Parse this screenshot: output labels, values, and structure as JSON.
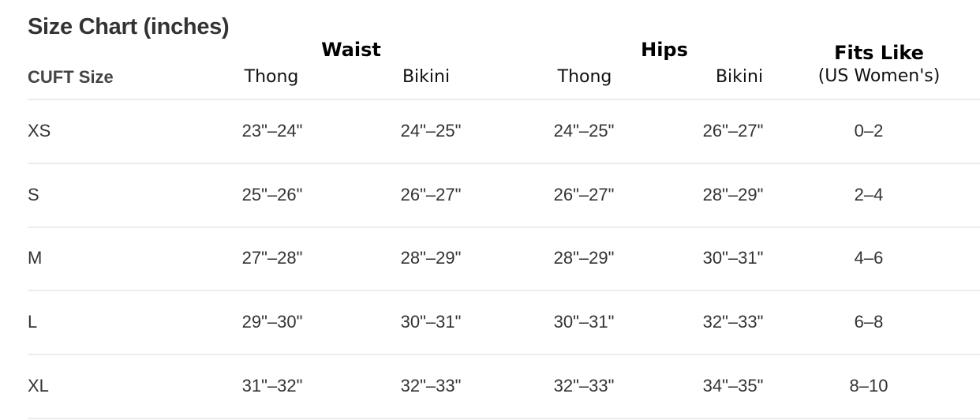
{
  "title": "Size Chart (inches)",
  "headers": {
    "size": "CUFT Size",
    "waist": "Waist",
    "hips": "Hips",
    "fits_like": "Fits Like",
    "fits_like_sub": "(US Women's)",
    "waist_thong": "Thong",
    "waist_bikini": "Bikini",
    "hips_thong": "Thong",
    "hips_bikini": "Bikini"
  },
  "rows": [
    {
      "size": "XS",
      "waist_thong": "23\"–24\"",
      "waist_bikini": "24\"–25\"",
      "hips_thong": "24\"–25\"",
      "hips_bikini": "26\"–27\"",
      "fits_like": "0–2"
    },
    {
      "size": "S",
      "waist_thong": "25\"–26\"",
      "waist_bikini": "26\"–27\"",
      "hips_thong": "26\"–27\"",
      "hips_bikini": "28\"–29\"",
      "fits_like": "2–4"
    },
    {
      "size": "M",
      "waist_thong": "27\"–28\"",
      "waist_bikini": "28\"–29\"",
      "hips_thong": "28\"–29\"",
      "hips_bikini": "30\"–31\"",
      "fits_like": "4–6"
    },
    {
      "size": "L",
      "waist_thong": "29\"–30\"",
      "waist_bikini": "30\"–31\"",
      "hips_thong": "30\"–31\"",
      "hips_bikini": "32\"–33\"",
      "fits_like": "6–8"
    },
    {
      "size": "XL",
      "waist_thong": "31\"–32\"",
      "waist_bikini": "32\"–33\"",
      "hips_thong": "32\"–33\"",
      "hips_bikini": "34\"–35\"",
      "fits_like": "8–10"
    }
  ]
}
